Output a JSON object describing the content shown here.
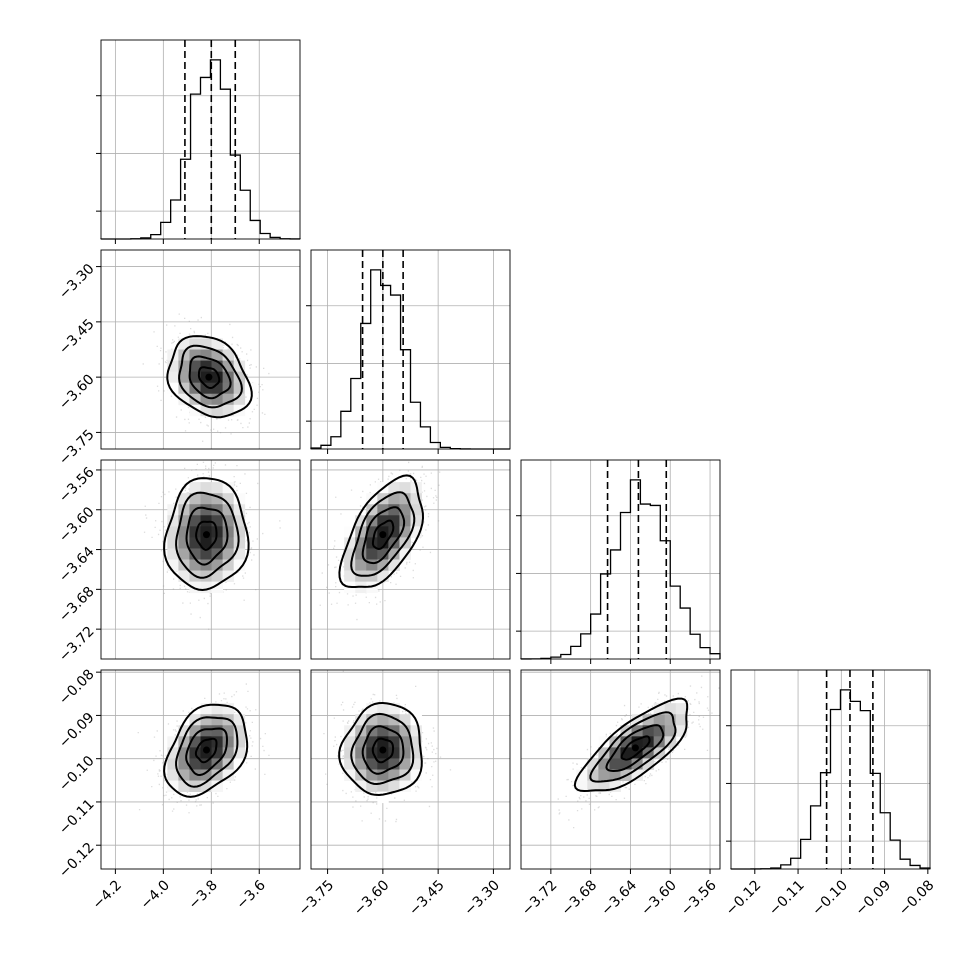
{
  "chart_data": {
    "type": "corner",
    "grid": true,
    "parameters": [
      {
        "ticks": [
          -4.2,
          -4.0,
          -3.8,
          -3.6
        ],
        "range": [
          -4.26,
          -3.43
        ],
        "quantiles": [
          -3.91,
          -3.8,
          -3.7
        ],
        "hist_mean": -3.8,
        "hist_sd": 0.085,
        "tick_labels": [
          "−4.2",
          "−4.0",
          "−3.8",
          "−3.6"
        ]
      },
      {
        "ticks": [
          -3.75,
          -3.6,
          -3.45,
          -3.3
        ],
        "range": [
          -3.795,
          -3.255
        ],
        "quantiles": [
          -3.655,
          -3.6,
          -3.545
        ],
        "hist_mean": -3.6,
        "hist_sd": 0.055,
        "tick_labels": [
          "−3.75",
          "−3.60",
          "−3.45",
          "−3.30"
        ]
      },
      {
        "ticks": [
          -3.72,
          -3.68,
          -3.64,
          -3.6,
          -3.56
        ],
        "range": [
          -3.75,
          -3.55
        ],
        "quantiles": [
          -3.663,
          -3.632,
          -3.604
        ],
        "hist_mean": -3.63,
        "hist_sd": 0.028,
        "tick_labels": [
          "−3.72",
          "−3.68",
          "−3.64",
          "−3.60",
          "−3.56"
        ]
      },
      {
        "ticks": [
          -0.12,
          -0.11,
          -0.1,
          -0.09,
          -0.08
        ],
        "range": [
          -0.1255,
          -0.0795
        ],
        "quantiles": [
          -0.1034,
          -0.098,
          -0.0927
        ],
        "hist_mean": -0.098,
        "hist_sd": 0.0053,
        "tick_labels": [
          "−0.12",
          "−0.11",
          "−0.10",
          "−0.09",
          "−0.08"
        ]
      }
    ],
    "pairs": [
      {
        "row": 1,
        "col": 0,
        "center": [
          -3.81,
          -3.6
        ],
        "rho": -0.25
      },
      {
        "row": 2,
        "col": 0,
        "center": [
          -3.82,
          -3.625
        ],
        "rho": 0.05
      },
      {
        "row": 2,
        "col": 1,
        "center": [
          -3.6,
          -3.625
        ],
        "rho": 0.55
      },
      {
        "row": 3,
        "col": 0,
        "center": [
          -3.82,
          -0.098
        ],
        "rho": 0.35
      },
      {
        "row": 3,
        "col": 1,
        "center": [
          -3.6,
          -0.098
        ],
        "rho": 0.05
      },
      {
        "row": 3,
        "col": 2,
        "center": [
          -3.635,
          -0.0975
        ],
        "rho": 0.75
      }
    ],
    "sample_points_per_panel": 900
  }
}
